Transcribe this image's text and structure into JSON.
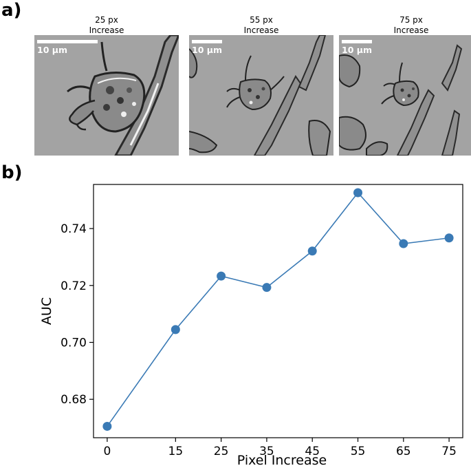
{
  "panels": {
    "a_label": "a)",
    "b_label": "b)"
  },
  "micrographs": [
    {
      "title_line1": "25 px",
      "title_line2": "Increase",
      "scale_label": "10 µm"
    },
    {
      "title_line1": "55 px",
      "title_line2": "Increase",
      "scale_label": "10 µm"
    },
    {
      "title_line1": "75 px",
      "title_line2": "Increase",
      "scale_label": "10 µm"
    }
  ],
  "chart_data": {
    "type": "line",
    "x": [
      0,
      15,
      25,
      35,
      45,
      55,
      65,
      75
    ],
    "y": [
      0.6705,
      0.7045,
      0.7233,
      0.7193,
      0.7321,
      0.7526,
      0.7347,
      0.7367
    ],
    "xticks": [
      "0",
      "15",
      "25",
      "35",
      "45",
      "55",
      "65",
      "75"
    ],
    "yticks": [
      "0.68",
      "0.70",
      "0.72",
      "0.74"
    ],
    "xlabel": "Pixel Increase",
    "ylabel": "AUC",
    "xlim": [
      -3,
      78
    ],
    "ylim": [
      0.6665,
      0.7555
    ],
    "grid": false,
    "color": "#3a7ab5"
  }
}
